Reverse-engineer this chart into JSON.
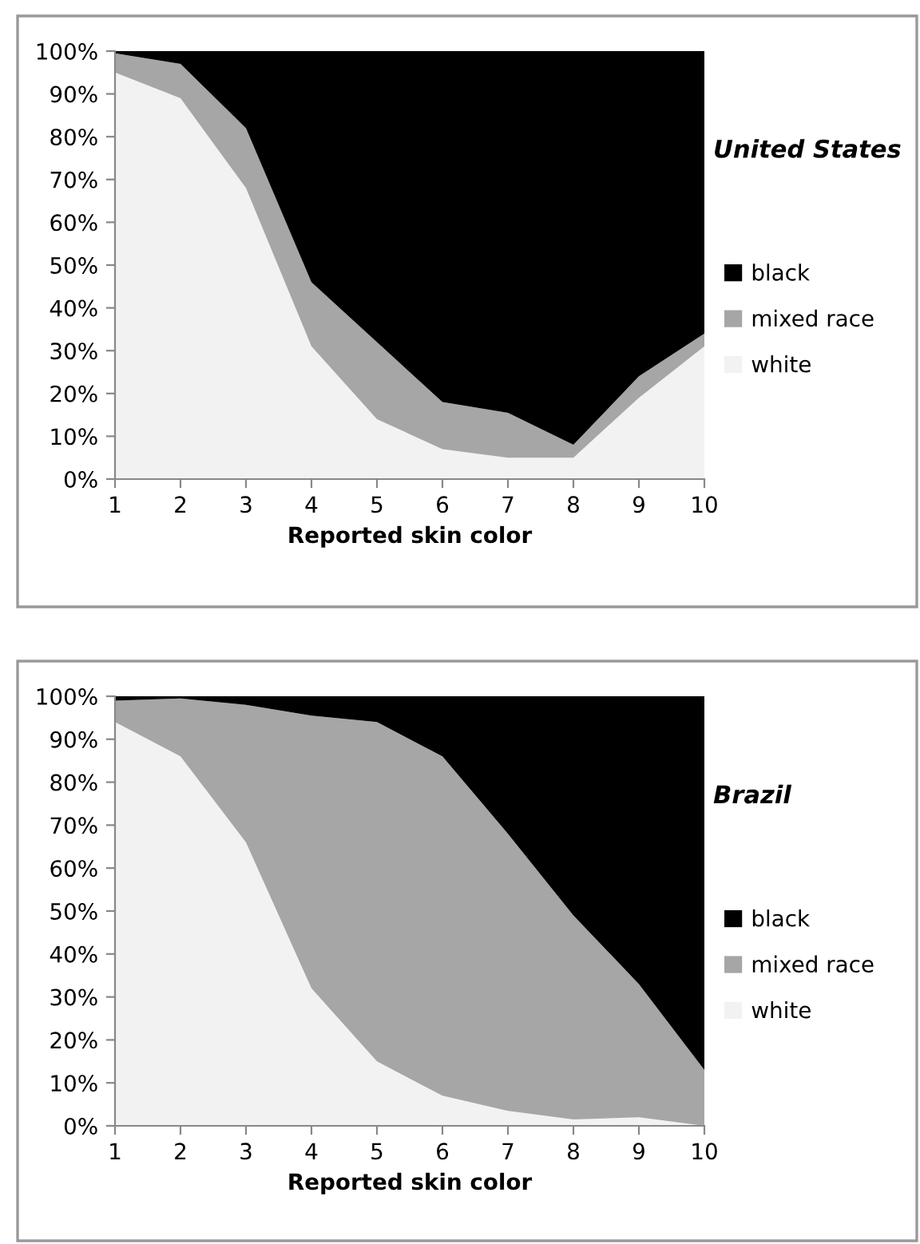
{
  "chart_data": [
    {
      "type": "area",
      "stacked": true,
      "title": "United States",
      "xlabel": "Reported skin color",
      "x": [
        1,
        2,
        3,
        4,
        5,
        6,
        7,
        8,
        9,
        10
      ],
      "xlim": [
        1,
        10
      ],
      "xticks": [
        1,
        2,
        3,
        4,
        5,
        6,
        7,
        8,
        9,
        10
      ],
      "ylim": [
        0,
        100
      ],
      "yticks": [
        {
          "value": 0,
          "label": "0%"
        },
        {
          "value": 10,
          "label": "10%"
        },
        {
          "value": 20,
          "label": "20%"
        },
        {
          "value": 30,
          "label": "30%"
        },
        {
          "value": 40,
          "label": "40%"
        },
        {
          "value": 50,
          "label": "50%"
        },
        {
          "value": 60,
          "label": "60%"
        },
        {
          "value": 70,
          "label": "70%"
        },
        {
          "value": 80,
          "label": "80%"
        },
        {
          "value": 90,
          "label": "90%"
        },
        {
          "value": 100,
          "label": "100%"
        }
      ],
      "grid": false,
      "legend": "right",
      "series": [
        {
          "name": "white",
          "color": "#f2f2f2",
          "values": [
            95,
            89,
            68,
            31,
            14,
            7,
            5,
            5,
            19,
            31
          ]
        },
        {
          "name": "mixed race",
          "color": "#a6a6a6",
          "values": [
            4.5,
            8,
            14,
            15,
            18,
            11,
            10.5,
            3,
            5,
            3
          ]
        },
        {
          "name": "black",
          "color": "#000000",
          "values": [
            0.5,
            3,
            18,
            54,
            68,
            82,
            84.5,
            92,
            76,
            66
          ]
        }
      ]
    },
    {
      "type": "area",
      "stacked": true,
      "title": "Brazil",
      "xlabel": "Reported skin color",
      "x": [
        1,
        2,
        3,
        4,
        5,
        6,
        7,
        8,
        9,
        10
      ],
      "xlim": [
        1,
        10
      ],
      "xticks": [
        1,
        2,
        3,
        4,
        5,
        6,
        7,
        8,
        9,
        10
      ],
      "ylim": [
        0,
        100
      ],
      "yticks": [
        {
          "value": 0,
          "label": "0%"
        },
        {
          "value": 10,
          "label": "10%"
        },
        {
          "value": 20,
          "label": "20%"
        },
        {
          "value": 30,
          "label": "30%"
        },
        {
          "value": 40,
          "label": "40%"
        },
        {
          "value": 50,
          "label": "50%"
        },
        {
          "value": 60,
          "label": "60%"
        },
        {
          "value": 70,
          "label": "70%"
        },
        {
          "value": 80,
          "label": "80%"
        },
        {
          "value": 90,
          "label": "90%"
        },
        {
          "value": 100,
          "label": "100%"
        }
      ],
      "grid": false,
      "legend": "right",
      "series": [
        {
          "name": "white",
          "color": "#f2f2f2",
          "values": [
            94,
            86,
            66,
            32,
            15,
            7,
            3.5,
            1.5,
            2,
            0
          ]
        },
        {
          "name": "mixed race",
          "color": "#a6a6a6",
          "values": [
            5,
            13.5,
            32,
            63.5,
            79,
            79,
            64.5,
            47.5,
            31,
            13
          ]
        },
        {
          "name": "black",
          "color": "#000000",
          "values": [
            1,
            0.5,
            2,
            4.5,
            6,
            14,
            32,
            51,
            67,
            87
          ]
        }
      ]
    }
  ]
}
